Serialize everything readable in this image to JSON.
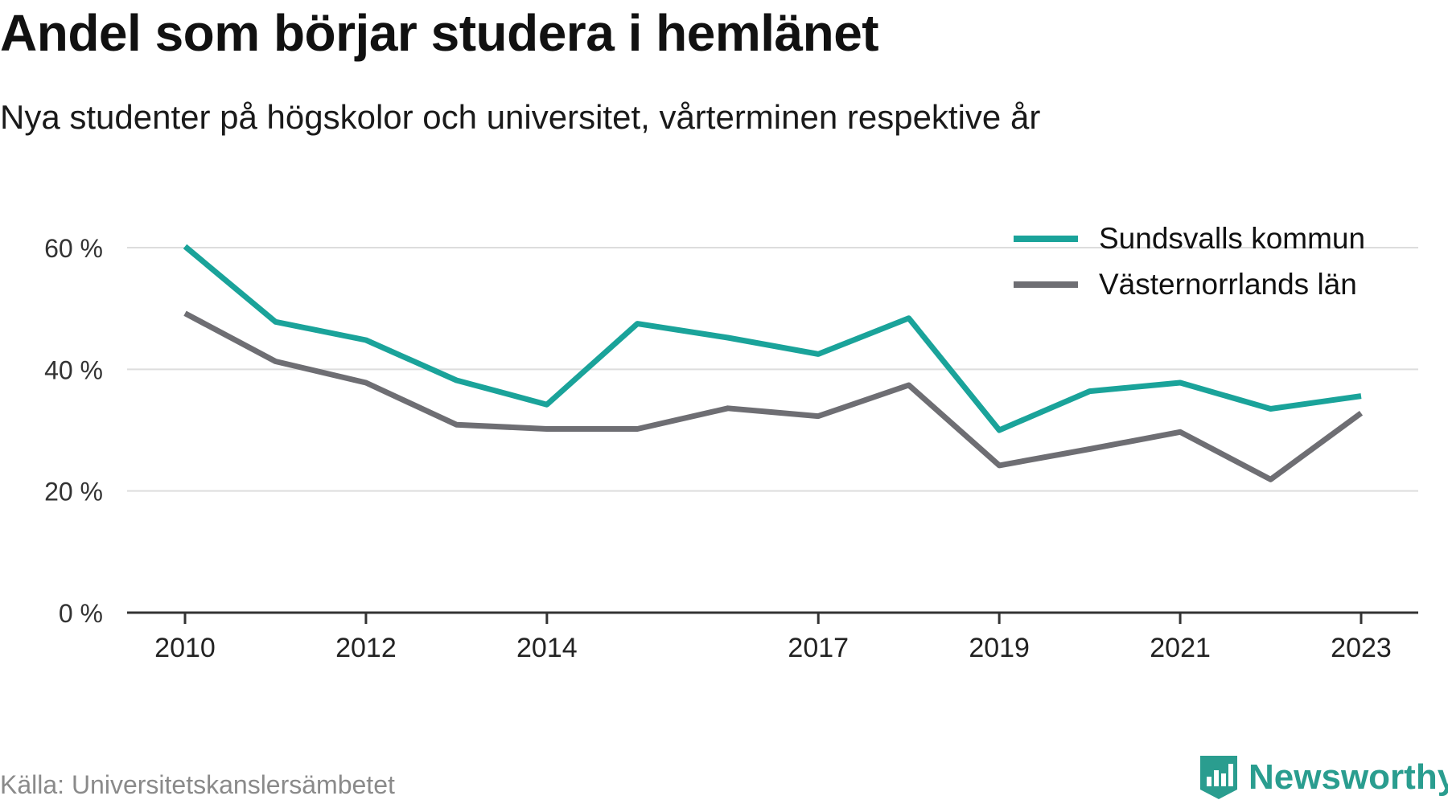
{
  "header": {
    "title": "Andel som börjar studera i hemlänet",
    "subtitle": "Nya studenter på högskolor och universitet, vårterminen respektive år"
  },
  "footer": {
    "source": "Källa: Universitetskanslersämbetet",
    "brand": "Newsworthy",
    "brand_icon": "bar-chart-badge-icon"
  },
  "colors": {
    "sundsvall": "#1aa39a",
    "lan": "#6e6e73",
    "grid": "#dddddd",
    "axis": "#333333",
    "brand": "#2a9d8f"
  },
  "chart_data": {
    "type": "line",
    "title": "Andel som börjar studera i hemlänet",
    "subtitle": "Nya studenter på högskolor och universitet, vårterminen respektive år",
    "x": [
      2010,
      2011,
      2012,
      2013,
      2014,
      2015,
      2016,
      2017,
      2018,
      2019,
      2020,
      2021,
      2022,
      2023
    ],
    "x_tick_labels": [
      "2010",
      "2012",
      "2014",
      "2017",
      "2019",
      "2021",
      "2023"
    ],
    "y_ticks": [
      0,
      20,
      40,
      60
    ],
    "y_tick_labels": [
      "0 %",
      "20 %",
      "40 %",
      "60 %"
    ],
    "ylim": [
      0,
      63
    ],
    "unit": "%",
    "grid": true,
    "legend_position": "top-right",
    "series": [
      {
        "name": "Sundsvalls kommun",
        "color": "#1aa39a",
        "values": [
          60.2,
          47.8,
          44.8,
          38.2,
          34.2,
          47.5,
          45.2,
          42.5,
          48.4,
          30.0,
          36.4,
          37.8,
          33.5,
          35.6
        ]
      },
      {
        "name": "Västernorrlands län",
        "color": "#6e6e73",
        "values": [
          49.2,
          41.3,
          37.8,
          30.9,
          30.2,
          30.2,
          33.6,
          32.3,
          37.4,
          24.2,
          26.9,
          29.7,
          21.9,
          32.8
        ]
      }
    ]
  }
}
